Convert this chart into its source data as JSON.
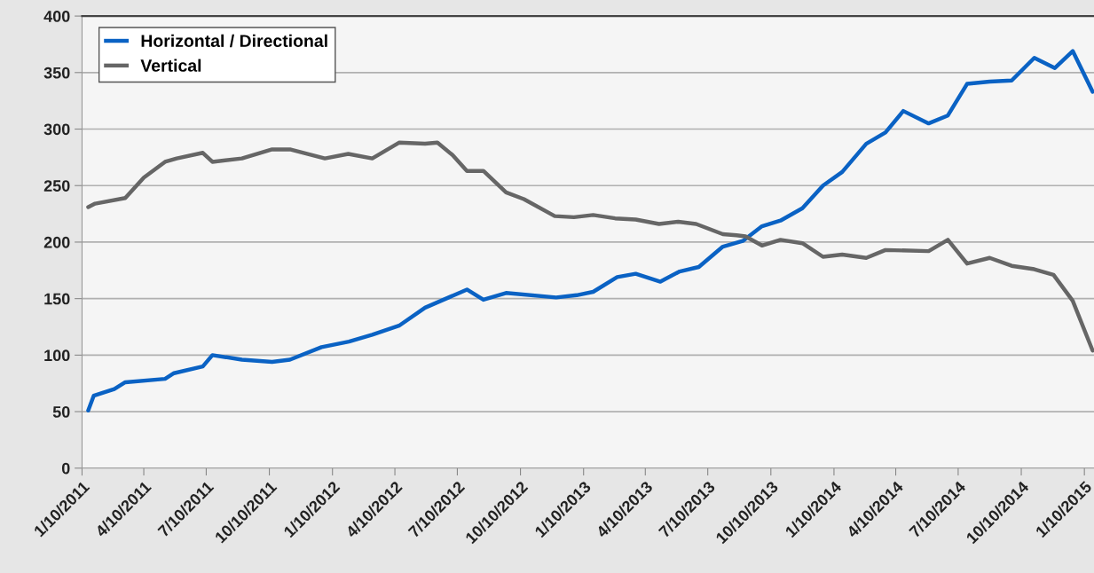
{
  "chart_data": {
    "type": "line",
    "legend": "top left",
    "grid": "y",
    "line_style": "solid",
    "marker": "none",
    "xlim": [
      "2011-01-10",
      "2015-01-24"
    ],
    "ylim": [
      0,
      400
    ],
    "yticks": [
      0,
      50,
      100,
      150,
      200,
      250,
      300,
      350,
      400
    ],
    "xticks": [
      {
        "value": "2011-01-10",
        "label": "1/10/2011"
      },
      {
        "value": "2011-04-10",
        "label": "4/10/2011"
      },
      {
        "value": "2011-07-10",
        "label": "7/10/2011"
      },
      {
        "value": "2011-10-10",
        "label": "10/10/2011"
      },
      {
        "value": "2012-01-10",
        "label": "1/10/2012"
      },
      {
        "value": "2012-04-10",
        "label": "4/10/2012"
      },
      {
        "value": "2012-07-10",
        "label": "7/10/2012"
      },
      {
        "value": "2012-10-10",
        "label": "10/10/2012"
      },
      {
        "value": "2013-01-10",
        "label": "1/10/2013"
      },
      {
        "value": "2013-04-10",
        "label": "4/10/2013"
      },
      {
        "value": "2013-07-10",
        "label": "7/10/2013"
      },
      {
        "value": "2013-10-10",
        "label": "10/10/2013"
      },
      {
        "value": "2014-01-10",
        "label": "1/10/2014"
      },
      {
        "value": "2014-04-10",
        "label": "4/10/2014"
      },
      {
        "value": "2014-07-10",
        "label": "7/10/2014"
      },
      {
        "value": "2014-10-10",
        "label": "10/10/2014"
      },
      {
        "value": "2015-01-10",
        "label": "1/10/2015"
      }
    ],
    "series": [
      {
        "name": "Horizontal / Directional",
        "color": "#0a62c4",
        "x": [
          "2011-01-19",
          "2011-01-27",
          "2011-02-26",
          "2011-03-14",
          "2011-05-11",
          "2011-05-24",
          "2011-07-05",
          "2011-07-19",
          "2011-08-31",
          "2011-10-14",
          "2011-11-09",
          "2011-12-25",
          "2012-02-03",
          "2012-03-08",
          "2012-04-16",
          "2012-05-24",
          "2012-07-24",
          "2012-08-17",
          "2012-09-19",
          "2012-12-01",
          "2012-12-31",
          "2013-01-24",
          "2013-02-28",
          "2013-03-27",
          "2013-05-02",
          "2013-05-30",
          "2013-06-27",
          "2013-08-01",
          "2013-08-30",
          "2013-09-27",
          "2013-10-24",
          "2013-11-25",
          "2013-12-25",
          "2014-01-22",
          "2014-02-26",
          "2014-03-26",
          "2014-04-21",
          "2014-05-28",
          "2014-06-25",
          "2014-07-23",
          "2014-08-25",
          "2014-09-26",
          "2014-10-29",
          "2014-11-28",
          "2014-12-24",
          "2015-01-22"
        ],
        "values": [
          51,
          64,
          70,
          76,
          79,
          84,
          90,
          100,
          96,
          94,
          96,
          107,
          112,
          118,
          126,
          142,
          158,
          149,
          155,
          151,
          153,
          156,
          169,
          172,
          165,
          174,
          178,
          196,
          201,
          214,
          219,
          230,
          250,
          262,
          287,
          297,
          316,
          305,
          312,
          340,
          342,
          343,
          363,
          354,
          369,
          333
        ]
      },
      {
        "name": "Vertical",
        "color": "#666666",
        "x": [
          "2011-01-19",
          "2011-01-29",
          "2011-03-14",
          "2011-04-10",
          "2011-05-11",
          "2011-05-28",
          "2011-07-05",
          "2011-07-19",
          "2011-08-31",
          "2011-10-14",
          "2011-11-09",
          "2011-12-30",
          "2012-02-02",
          "2012-03-08",
          "2012-04-16",
          "2012-05-24",
          "2012-06-11",
          "2012-07-03",
          "2012-07-24",
          "2012-08-17",
          "2012-09-19",
          "2012-10-15",
          "2012-11-29",
          "2012-12-27",
          "2013-01-24",
          "2013-02-25",
          "2013-03-27",
          "2013-04-30",
          "2013-05-28",
          "2013-06-23",
          "2013-08-01",
          "2013-08-21",
          "2013-09-03",
          "2013-09-27",
          "2013-10-24",
          "2013-11-25",
          "2013-12-25",
          "2014-01-22",
          "2014-02-26",
          "2014-03-26",
          "2014-05-28",
          "2014-06-25",
          "2014-07-23",
          "2014-08-25",
          "2014-09-26",
          "2014-10-29",
          "2014-11-26",
          "2014-12-24",
          "2015-01-22"
        ],
        "values": [
          231,
          234,
          239,
          257,
          271,
          274,
          279,
          271,
          274,
          282,
          282,
          274,
          278,
          274,
          288,
          287,
          288,
          277,
          263,
          263,
          244,
          238,
          223,
          222,
          224,
          221,
          220,
          216,
          218,
          216,
          207,
          206,
          205,
          197,
          202,
          199,
          187,
          189,
          186,
          193,
          192,
          202,
          181,
          186,
          179,
          176,
          171,
          148,
          104
        ]
      }
    ]
  }
}
